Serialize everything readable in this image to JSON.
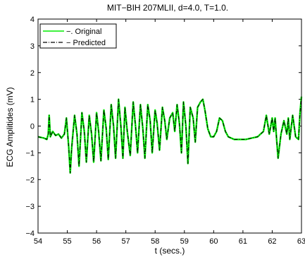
{
  "chart_data": {
    "type": "line",
    "title": "MIT−BIH 207MLII, d=4.0, T=1.0.",
    "xlabel": "t (secs.)",
    "ylabel": "ECG Amplitides (mV)",
    "xlim": [
      54,
      63
    ],
    "ylim": [
      -4,
      4
    ],
    "xticks": [
      "54",
      "55",
      "56",
      "57",
      "58",
      "59",
      "60",
      "61",
      "62",
      "63"
    ],
    "yticks": [
      "−4",
      "−3",
      "−2",
      "−1",
      "0",
      "1",
      "2",
      "3",
      "4"
    ],
    "grid": false,
    "legend": {
      "position": "top-left"
    },
    "series": [
      {
        "name": "−. Original",
        "color": "#00ee00",
        "style": "solid",
        "x": [
          54.0,
          54.2,
          54.3,
          54.35,
          54.38,
          54.42,
          54.5,
          54.6,
          54.7,
          54.8,
          54.9,
          54.97,
          55.05,
          55.1,
          55.15,
          55.25,
          55.33,
          55.4,
          55.5,
          55.58,
          55.65,
          55.75,
          55.83,
          55.9,
          56.0,
          56.07,
          56.15,
          56.25,
          56.33,
          56.4,
          56.5,
          56.58,
          56.65,
          56.75,
          56.83,
          56.9,
          56.97,
          57.05,
          57.15,
          57.25,
          57.33,
          57.4,
          57.5,
          57.58,
          57.65,
          57.75,
          57.83,
          57.9,
          58.0,
          58.07,
          58.15,
          58.25,
          58.33,
          58.4,
          58.5,
          58.6,
          58.67,
          58.75,
          58.83,
          58.9,
          58.97,
          59.05,
          59.12,
          59.2,
          59.3,
          59.37,
          59.45,
          59.55,
          59.63,
          59.7,
          59.8,
          59.9,
          60.0,
          60.1,
          60.2,
          60.3,
          60.4,
          60.5,
          60.7,
          60.9,
          61.1,
          61.3,
          61.5,
          61.6,
          61.7,
          61.8,
          61.9,
          62.0,
          62.05,
          62.1,
          62.15,
          62.2,
          62.3,
          62.4,
          62.5,
          62.55,
          62.6,
          62.7,
          62.8,
          62.9,
          62.95,
          63.0
        ],
        "y": [
          -0.4,
          -0.45,
          -0.5,
          -0.3,
          0.4,
          -0.4,
          -0.2,
          -0.35,
          -0.3,
          -0.45,
          -0.3,
          0.3,
          -0.8,
          -1.75,
          -0.8,
          0.4,
          -0.3,
          -1.5,
          0.5,
          -0.2,
          -1.35,
          0.4,
          -0.3,
          -1.35,
          0.5,
          -0.2,
          -1.3,
          0.6,
          -0.1,
          -1.25,
          0.8,
          0.0,
          -1.2,
          1.0,
          0.0,
          -1.2,
          0.7,
          -0.2,
          -1.1,
          0.9,
          0.0,
          -1.0,
          0.8,
          -0.1,
          -1.2,
          0.8,
          0.2,
          -1.0,
          0.6,
          0.1,
          -0.9,
          0.7,
          0.2,
          -0.5,
          0.3,
          0.5,
          -0.2,
          0.8,
          0.1,
          -1.0,
          0.9,
          0.0,
          -1.4,
          0.7,
          0.3,
          -0.6,
          0.7,
          0.9,
          1.0,
          0.6,
          -0.1,
          -0.4,
          -0.4,
          -0.2,
          0.3,
          0.2,
          -0.2,
          -0.4,
          -0.5,
          -0.5,
          -0.5,
          -0.45,
          -0.4,
          -0.3,
          -0.2,
          0.4,
          -0.3,
          0.3,
          -0.2,
          0.3,
          -0.5,
          -1.2,
          -0.3,
          0.2,
          -0.3,
          0.3,
          -0.5,
          0.4,
          -0.4,
          -0.5,
          0.5,
          1.1
        ]
      },
      {
        "name": "− Predicted",
        "color": "#000000",
        "style": "dashdot",
        "x": [
          54.0,
          54.2,
          54.3,
          54.35,
          54.38,
          54.42,
          54.5,
          54.6,
          54.7,
          54.8,
          54.9,
          54.97,
          55.05,
          55.1,
          55.15,
          55.25,
          55.33,
          55.4,
          55.5,
          55.58,
          55.65,
          55.75,
          55.83,
          55.9,
          56.0,
          56.07,
          56.15,
          56.25,
          56.33,
          56.4,
          56.5,
          56.58,
          56.65,
          56.75,
          56.83,
          56.9,
          56.97,
          57.05,
          57.15,
          57.25,
          57.33,
          57.4,
          57.5,
          57.58,
          57.65,
          57.75,
          57.83,
          57.9,
          58.0,
          58.07,
          58.15,
          58.25,
          58.33,
          58.4,
          58.5,
          58.6,
          58.67,
          58.75,
          58.83,
          58.9,
          58.97,
          59.05,
          59.12,
          59.2,
          59.3,
          59.37,
          59.45,
          59.55,
          59.63,
          59.7,
          59.8,
          59.9,
          60.0,
          60.1,
          60.2,
          60.3,
          60.4,
          60.5,
          60.7,
          60.9,
          61.1,
          61.3,
          61.5,
          61.6,
          61.7,
          61.8,
          61.9,
          62.0,
          62.05,
          62.1,
          62.15,
          62.2,
          62.3,
          62.4,
          62.5,
          62.55,
          62.6,
          62.7,
          62.8,
          62.9,
          62.95,
          63.0
        ],
        "y": [
          -0.4,
          -0.45,
          -0.5,
          -0.3,
          0.4,
          -0.4,
          -0.2,
          -0.35,
          -0.3,
          -0.45,
          -0.3,
          0.3,
          -0.8,
          -1.75,
          -0.8,
          0.4,
          -0.3,
          -1.5,
          0.5,
          -0.2,
          -1.35,
          0.4,
          -0.3,
          -1.35,
          0.5,
          -0.2,
          -1.3,
          0.6,
          -0.1,
          -1.25,
          0.8,
          0.0,
          -1.2,
          1.0,
          0.0,
          -1.2,
          0.7,
          -0.2,
          -1.1,
          0.9,
          0.0,
          -1.0,
          0.8,
          -0.1,
          -1.2,
          0.8,
          0.2,
          -1.0,
          0.6,
          0.1,
          -0.9,
          0.7,
          0.2,
          -0.5,
          0.3,
          0.5,
          -0.2,
          0.8,
          0.1,
          -1.0,
          0.9,
          0.0,
          -1.4,
          0.7,
          0.3,
          -0.6,
          0.7,
          0.9,
          1.0,
          0.6,
          -0.1,
          -0.4,
          -0.4,
          -0.2,
          0.3,
          0.2,
          -0.2,
          -0.4,
          -0.5,
          -0.5,
          -0.5,
          -0.45,
          -0.4,
          -0.3,
          -0.2,
          0.4,
          -0.3,
          0.3,
          -0.2,
          0.3,
          -0.5,
          -1.2,
          -0.3,
          0.2,
          -0.3,
          0.3,
          -0.5,
          0.4,
          -0.4,
          -0.5,
          0.5,
          1.1
        ]
      }
    ]
  }
}
